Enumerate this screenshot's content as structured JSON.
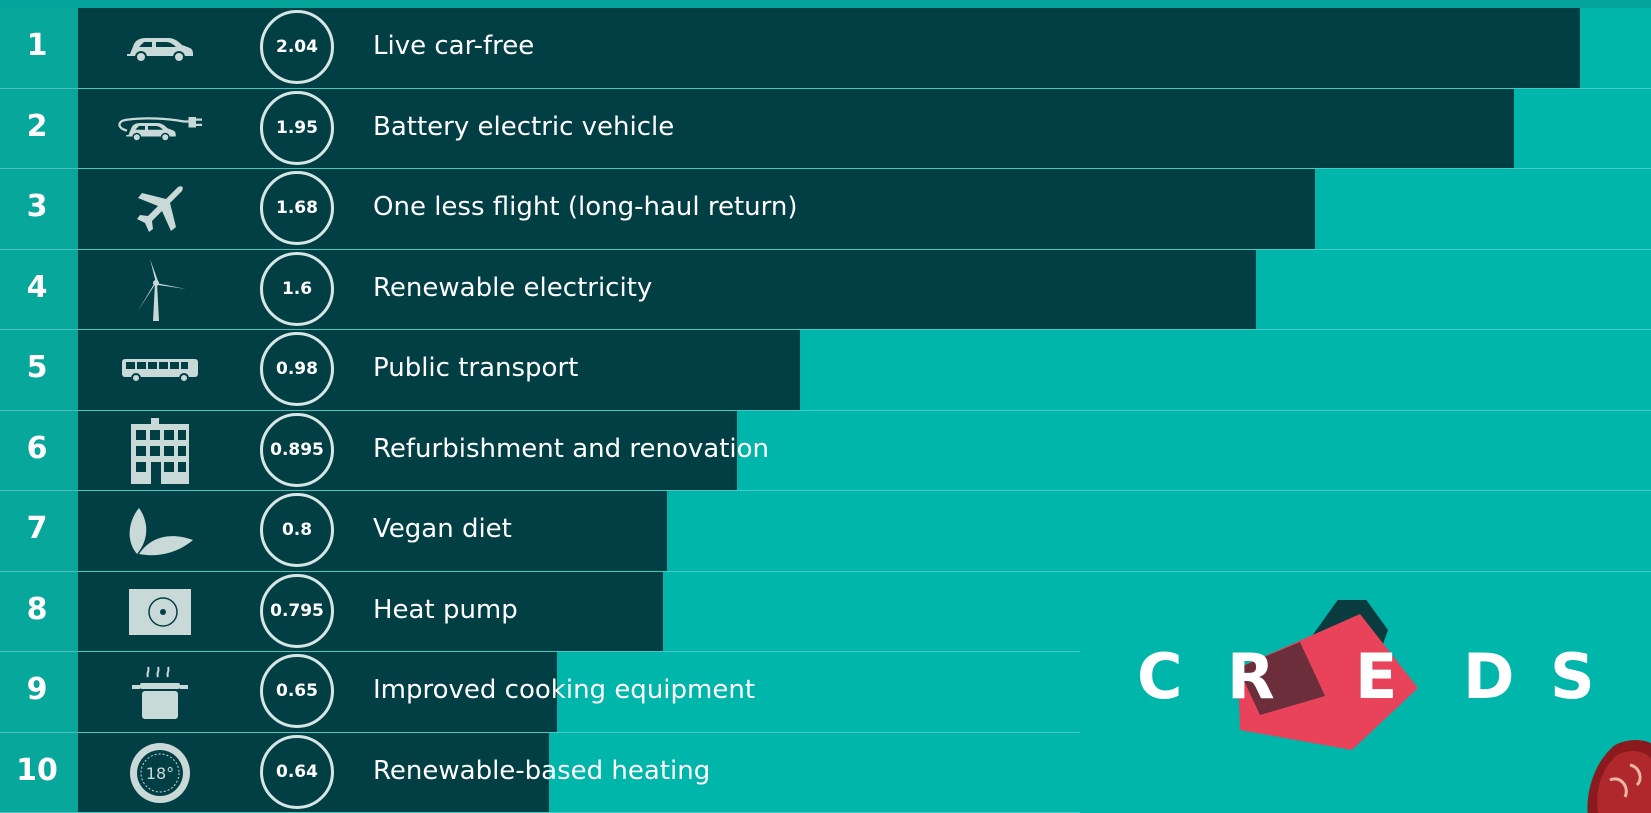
{
  "colors": {
    "background": "#00b5a9",
    "bar": "#023f45",
    "rank_column": "#07a79c",
    "text": "#ffffff",
    "logo_red": "#e8435a",
    "logo_dark": "#6b2e3a"
  },
  "chart_data": {
    "type": "bar",
    "orientation": "horizontal",
    "categories": [
      "Live car-free",
      "Battery electric vehicle",
      "One less flight (long-haul return)",
      "Renewable electricity",
      "Public transport",
      "Refurbishment and renovation",
      "Vegan diet",
      "Heat pump",
      "Improved cooking equipment",
      "Renewable-based heating"
    ],
    "ranks": [
      "1",
      "2",
      "3",
      "4",
      "5",
      "6",
      "7",
      "8",
      "9",
      "10"
    ],
    "values": [
      2.04,
      1.95,
      1.68,
      1.6,
      0.98,
      0.895,
      0.8,
      0.795,
      0.65,
      0.64
    ],
    "value_labels": [
      "2.04",
      "1.95",
      "1.68",
      "1.6",
      "0.98",
      "0.895",
      "0.8",
      "0.795",
      "0.65",
      "0.64"
    ],
    "icons": [
      "car-icon",
      "electric-car-icon",
      "plane-icon",
      "wind-turbine-icon",
      "bus-icon",
      "building-icon",
      "leaf-icon",
      "heat-pump-icon",
      "cooking-pot-icon",
      "thermostat-icon"
    ],
    "thermostat_text": "18°",
    "xlim": [
      0,
      2.04
    ]
  },
  "logo": {
    "letters": [
      "C",
      "R",
      "E",
      "D",
      "S"
    ]
  }
}
